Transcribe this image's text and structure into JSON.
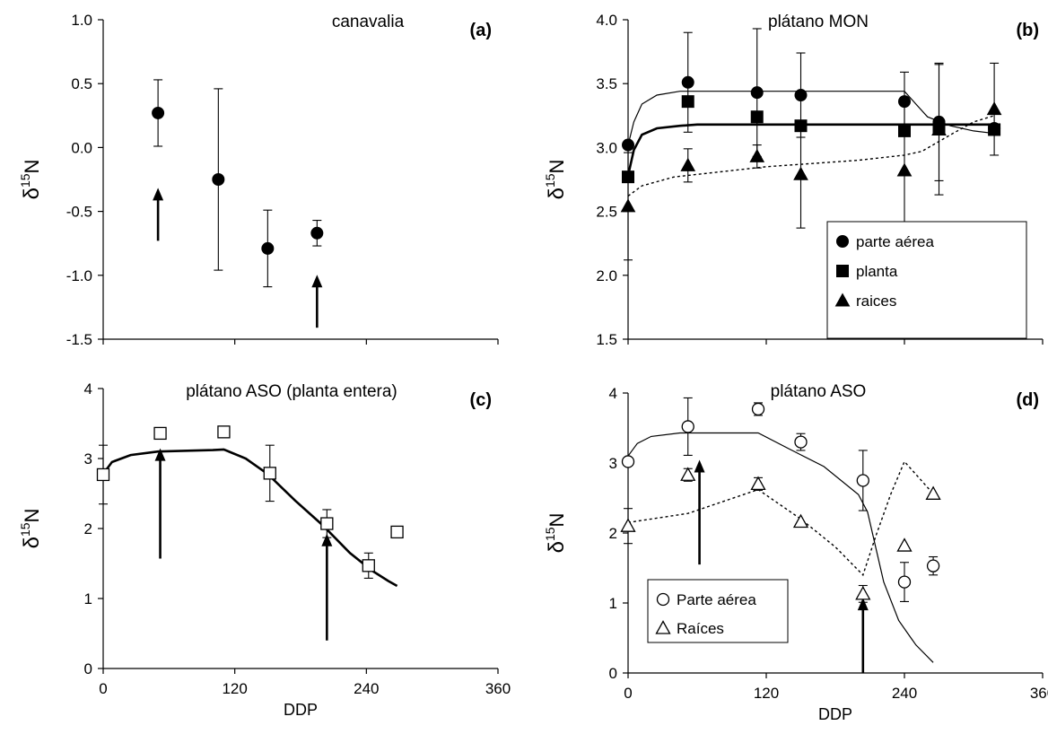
{
  "chart_data": [
    {
      "id": "a",
      "type": "scatter",
      "title": "canavalia",
      "panel_label": "(a)",
      "xlabel": "",
      "ylabel": "δ15N",
      "ylabel_main": "δ",
      "ylabel_sup": "15",
      "ylabel_end": "N",
      "xlim": [
        0,
        360
      ],
      "ylim": [
        -1.5,
        1.0
      ],
      "xticks": [],
      "yticks": [
        -1.5,
        -1.0,
        -0.5,
        0.0,
        0.5,
        1.0
      ],
      "ytick_labels": [
        "-1.5",
        "-1.0",
        "-0.5",
        "0.0",
        "0.5",
        "1.0"
      ],
      "series": [
        {
          "marker": "circle-filled",
          "points": [
            {
              "x": 50,
              "y": 0.27,
              "err": 0.26
            },
            {
              "x": 105,
              "y": -0.25,
              "err": 0.71
            },
            {
              "x": 150,
              "y": -0.79,
              "err": 0.3
            },
            {
              "x": 195,
              "y": -0.67,
              "err": 0.1
            }
          ]
        }
      ],
      "lines": [],
      "arrows": [
        {
          "x": 50,
          "y_from": -0.73,
          "y_to": -0.33
        },
        {
          "x": 195,
          "y_from": -1.41,
          "y_to": -1.01
        }
      ]
    },
    {
      "id": "b",
      "type": "scatter",
      "title": "plátano MON",
      "panel_label": "(b)",
      "xlabel": "",
      "ylabel": "δ15N",
      "ylabel_main": "δ",
      "ylabel_sup": "15",
      "ylabel_end": "N",
      "xlim": [
        0,
        360
      ],
      "ylim": [
        1.5,
        4.0
      ],
      "xticks": [],
      "yticks": [
        1.5,
        2.0,
        2.5,
        3.0,
        3.5,
        4.0
      ],
      "ytick_labels": [
        "1.5",
        "2.0",
        "2.5",
        "3.0",
        "3.5",
        "4.0"
      ],
      "legend": {
        "placement": "bottom-right",
        "entries": [
          {
            "label": "parte aérea",
            "marker": "circle-filled"
          },
          {
            "label": "planta",
            "marker": "square-filled"
          },
          {
            "label": "raices",
            "marker": "triangle-filled"
          }
        ]
      },
      "series": [
        {
          "name": "parte aérea",
          "marker": "circle-filled",
          "points": [
            {
              "x": 0,
              "y": 3.02,
              "err": 0.0
            },
            {
              "x": 52,
              "y": 3.51,
              "err": 0.39
            },
            {
              "x": 112,
              "y": 3.43,
              "err": 0.5
            },
            {
              "x": 150,
              "y": 3.41,
              "err": 0.33
            },
            {
              "x": 240,
              "y": 3.36,
              "err": 0.23
            },
            {
              "x": 270,
              "y": 3.2,
              "err": 0.46
            },
            {
              "x": 318,
              "y": 3.15,
              "err": 0.0
            }
          ]
        },
        {
          "name": "planta",
          "marker": "square-filled",
          "points": [
            {
              "x": 0,
              "y": 2.77,
              "err": 0.0
            },
            {
              "x": 52,
              "y": 3.36,
              "err": 0.0
            },
            {
              "x": 112,
              "y": 3.24,
              "err": 0.0
            },
            {
              "x": 150,
              "y": 3.17,
              "err": 0.0
            },
            {
              "x": 240,
              "y": 3.13,
              "err": 0.0
            },
            {
              "x": 270,
              "y": 3.16,
              "err": 0.0
            },
            {
              "x": 318,
              "y": 3.14,
              "err": 0.0
            }
          ]
        },
        {
          "name": "raices",
          "marker": "triangle-filled",
          "points": [
            {
              "x": 0,
              "y": 2.54,
              "err": 0.42
            },
            {
              "x": 52,
              "y": 2.86,
              "err": 0.13
            },
            {
              "x": 112,
              "y": 2.93,
              "err": 0.09
            },
            {
              "x": 150,
              "y": 2.79,
              "err": 0.42
            },
            {
              "x": 240,
              "y": 2.82,
              "err": 0.51
            },
            {
              "x": 270,
              "y": 3.14,
              "err": 0.51
            },
            {
              "x": 318,
              "y": 3.3,
              "err": 0.36
            }
          ]
        }
      ],
      "lines": [
        {
          "style": "thin",
          "points": [
            [
              0,
              3.02
            ],
            [
              5,
              3.2
            ],
            [
              12,
              3.34
            ],
            [
              25,
              3.41
            ],
            [
              45,
              3.44
            ],
            [
              240,
              3.44
            ],
            [
              250,
              3.34
            ],
            [
              260,
              3.24
            ],
            [
              280,
              3.17
            ],
            [
              300,
              3.13
            ],
            [
              318,
              3.11
            ]
          ]
        },
        {
          "style": "thick",
          "points": [
            [
              0,
              2.78
            ],
            [
              5,
              2.98
            ],
            [
              12,
              3.1
            ],
            [
              25,
              3.15
            ],
            [
              45,
              3.17
            ],
            [
              60,
              3.18
            ],
            [
              318,
              3.18
            ]
          ]
        },
        {
          "style": "dotted",
          "points": [
            [
              0,
              2.62
            ],
            [
              12,
              2.7
            ],
            [
              40,
              2.77
            ],
            [
              80,
              2.81
            ],
            [
              120,
              2.85
            ],
            [
              200,
              2.9
            ],
            [
              240,
              2.94
            ],
            [
              255,
              2.97
            ],
            [
              280,
              3.1
            ],
            [
              300,
              3.2
            ],
            [
              318,
              3.25
            ]
          ]
        }
      ],
      "arrows": []
    },
    {
      "id": "c",
      "type": "scatter",
      "title": "plátano ASO (planta entera)",
      "panel_label": "(c)",
      "xlabel": "DDP",
      "ylabel": "δ15N",
      "ylabel_main": "δ",
      "ylabel_sup": "15",
      "ylabel_end": "N",
      "xlim": [
        0,
        360
      ],
      "ylim": [
        0,
        4
      ],
      "xticks": [
        0,
        120,
        240,
        360
      ],
      "xtick_labels": [
        "0",
        "120",
        "240",
        "360"
      ],
      "yticks": [
        0,
        1,
        2,
        3,
        4
      ],
      "ytick_labels": [
        "0",
        "1",
        "2",
        "3",
        "4"
      ],
      "series": [
        {
          "marker": "square-open",
          "points": [
            {
              "x": 0,
              "y": 2.77,
              "err": 0.42
            },
            {
              "x": 52,
              "y": 3.36,
              "err": 0.07
            },
            {
              "x": 110,
              "y": 3.38,
              "err": 0.0
            },
            {
              "x": 152,
              "y": 2.79,
              "err": 0.4
            },
            {
              "x": 204,
              "y": 2.07,
              "err": 0.2
            },
            {
              "x": 242,
              "y": 1.47,
              "err": 0.18
            },
            {
              "x": 268,
              "y": 1.95,
              "err": 0.0
            }
          ]
        }
      ],
      "lines": [
        {
          "style": "thick",
          "points": [
            [
              0,
              2.78
            ],
            [
              8,
              2.95
            ],
            [
              25,
              3.05
            ],
            [
              50,
              3.1
            ],
            [
              100,
              3.12
            ],
            [
              110,
              3.13
            ],
            [
              130,
              3.0
            ],
            [
              150,
              2.78
            ],
            [
              175,
              2.4
            ],
            [
              200,
              2.05
            ],
            [
              225,
              1.65
            ],
            [
              245,
              1.4
            ],
            [
              260,
              1.25
            ],
            [
              268,
              1.18
            ]
          ]
        }
      ],
      "arrows": [
        {
          "x": 52,
          "y_from": 1.57,
          "y_to": 3.12
        },
        {
          "x": 204,
          "y_from": 0.4,
          "y_to": 1.9
        }
      ]
    },
    {
      "id": "d",
      "type": "scatter",
      "title": "plátano ASO",
      "panel_label": "(d)",
      "xlabel": "DDP",
      "ylabel": "δ15N",
      "ylabel_main": "δ",
      "ylabel_sup": "15",
      "ylabel_end": "N",
      "xlim": [
        0,
        360
      ],
      "ylim": [
        0,
        4
      ],
      "xticks": [
        0,
        120,
        240,
        360
      ],
      "xtick_labels": [
        "0",
        "120",
        "240",
        "360"
      ],
      "yticks": [
        0,
        1,
        2,
        3,
        4
      ],
      "ytick_labels": [
        "0",
        "1",
        "2",
        "3",
        "4"
      ],
      "legend": {
        "placement": "bottom-left",
        "entries": [
          {
            "label": "Parte aérea",
            "marker": "circle-open"
          },
          {
            "label": "Raíces",
            "marker": "triangle-open"
          }
        ]
      },
      "series": [
        {
          "name": "Parte aérea",
          "marker": "circle-open",
          "points": [
            {
              "x": 0,
              "y": 3.02,
              "err": 0.0
            },
            {
              "x": 52,
              "y": 3.52,
              "err": 0.41
            },
            {
              "x": 113,
              "y": 3.77,
              "err": 0.09
            },
            {
              "x": 150,
              "y": 3.3,
              "err": 0.12
            },
            {
              "x": 204,
              "y": 2.75,
              "err": 0.43
            },
            {
              "x": 240,
              "y": 1.3,
              "err": 0.28
            },
            {
              "x": 265,
              "y": 1.53,
              "err": 0.13
            }
          ]
        },
        {
          "name": "Raíces",
          "marker": "triangle-open",
          "points": [
            {
              "x": 0,
              "y": 2.1,
              "err": 0.25
            },
            {
              "x": 52,
              "y": 2.83,
              "err": 0.09
            },
            {
              "x": 113,
              "y": 2.7,
              "err": 0.09
            },
            {
              "x": 150,
              "y": 2.16,
              "err": 0.0
            },
            {
              "x": 204,
              "y": 1.13,
              "err": 0.12
            },
            {
              "x": 240,
              "y": 1.82,
              "err": 0.0
            },
            {
              "x": 265,
              "y": 2.56,
              "err": 0.0
            }
          ]
        }
      ],
      "lines": [
        {
          "style": "thin",
          "points": [
            [
              0,
              3.1
            ],
            [
              8,
              3.28
            ],
            [
              20,
              3.38
            ],
            [
              45,
              3.43
            ],
            [
              113,
              3.43
            ],
            [
              140,
              3.2
            ],
            [
              170,
              2.95
            ],
            [
              200,
              2.55
            ],
            [
              208,
              2.3
            ],
            [
              215,
              1.8
            ],
            [
              222,
              1.3
            ],
            [
              235,
              0.75
            ],
            [
              250,
              0.4
            ],
            [
              265,
              0.15
            ]
          ]
        },
        {
          "style": "dotted",
          "points": [
            [
              0,
              2.15
            ],
            [
              52,
              2.28
            ],
            [
              113,
              2.62
            ],
            [
              150,
              2.2
            ],
            [
              180,
              1.8
            ],
            [
              204,
              1.4
            ],
            [
              215,
              1.95
            ],
            [
              228,
              2.55
            ],
            [
              240,
              3.02
            ],
            [
              252,
              2.8
            ],
            [
              265,
              2.56
            ]
          ]
        }
      ],
      "arrows": [
        {
          "x": 62,
          "y_from": 1.55,
          "y_to": 3.02
        },
        {
          "x": 204,
          "y_from": 0.0,
          "y_to": 1.05
        }
      ]
    }
  ]
}
